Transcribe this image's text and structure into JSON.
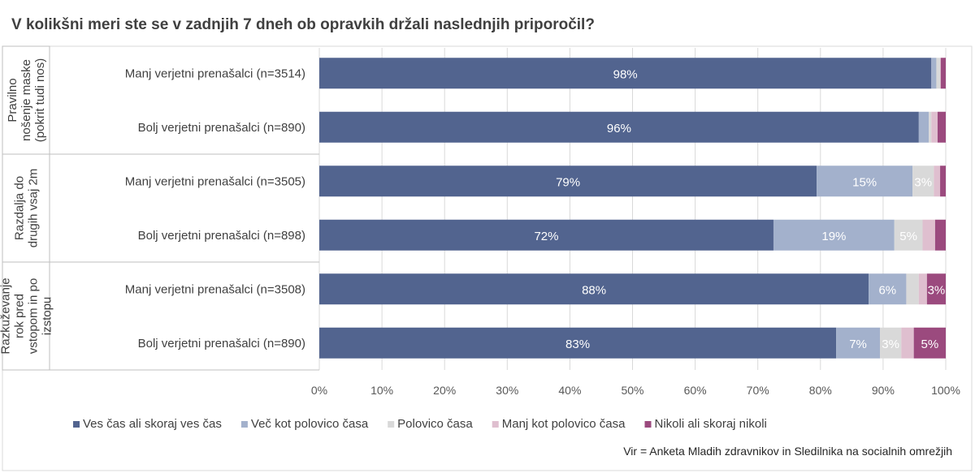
{
  "chart_data": {
    "type": "bar",
    "orientation": "horizontal-stacked-100",
    "title": "V kolikšni meri ste se v zadnjih 7 dneh ob opravkih držali naslednjih priporočil?",
    "groups": [
      {
        "label": "Pravilno nošenje maske (pokrit tudi nos)",
        "label_lines": [
          "Pravilno",
          "nošenje maske",
          "(pokrit tudi nos)"
        ],
        "rows": [
          0,
          1
        ]
      },
      {
        "label": "Razdalja do drugih vsaj 2m",
        "label_lines": [
          "Razdalja do",
          "drugih vsaj 2m"
        ],
        "rows": [
          2,
          3
        ]
      },
      {
        "label": "Razkuževanje rok pred vstopom in po izstopu",
        "label_lines": [
          "Razkuževanje",
          "rok pred",
          "vstopom in po",
          "izstopu"
        ],
        "rows": [
          4,
          5
        ]
      }
    ],
    "categories": [
      "Manj verjetni prenašalci (n=3514)",
      "Bolj verjetni prenašalci (n=890)",
      "Manj verjetni prenašalci (n=3505)",
      "Bolj verjetni prenašalci (n=898)",
      "Manj verjetni prenašalci (n=3508)",
      "Bolj verjetni prenašalci (n=890)"
    ],
    "series": [
      {
        "name": "Ves čas ali skoraj ves čas",
        "color": "#52648f",
        "values": [
          97.7,
          95.7,
          79.4,
          72.5,
          87.7,
          82.5
        ],
        "labels": [
          "98%",
          "96%",
          "79%",
          "72%",
          "88%",
          "83%"
        ]
      },
      {
        "name": "Več kot polovico časa",
        "color": "#a3b1cc",
        "values": [
          0.8,
          1.6,
          15.3,
          19.3,
          6.0,
          7.0
        ],
        "labels": [
          "",
          "",
          "15%",
          "19%",
          "6%",
          "7%"
        ]
      },
      {
        "name": "Polovico časa",
        "color": "#d9d9d9",
        "values": [
          0.6,
          0.4,
          3.4,
          4.5,
          2.0,
          3.4
        ],
        "labels": [
          "",
          "",
          "3%",
          "5%",
          "",
          "3%"
        ]
      },
      {
        "name": "Manj kot polovico časa",
        "color": "#dfbfcf",
        "values": [
          0.1,
          1.0,
          1.0,
          2.0,
          1.3,
          2.0
        ],
        "labels": [
          "",
          "",
          "",
          "",
          "",
          ""
        ]
      },
      {
        "name": "Nikoli ali skoraj nikoli",
        "color": "#9b4a7e",
        "values": [
          0.8,
          1.3,
          0.9,
          1.7,
          3.0,
          5.1
        ],
        "labels": [
          "",
          "",
          "",
          "",
          "3%",
          "5%"
        ]
      }
    ],
    "xlim": [
      0,
      100
    ],
    "xticks": [
      "0%",
      "10%",
      "20%",
      "30%",
      "40%",
      "50%",
      "60%",
      "70%",
      "80%",
      "90%",
      "100%"
    ],
    "grid": true,
    "legend": "bottom"
  },
  "source": "Vir = Anketa Mladih zdravnikov in Sledilnika na socialnih omrežjih"
}
